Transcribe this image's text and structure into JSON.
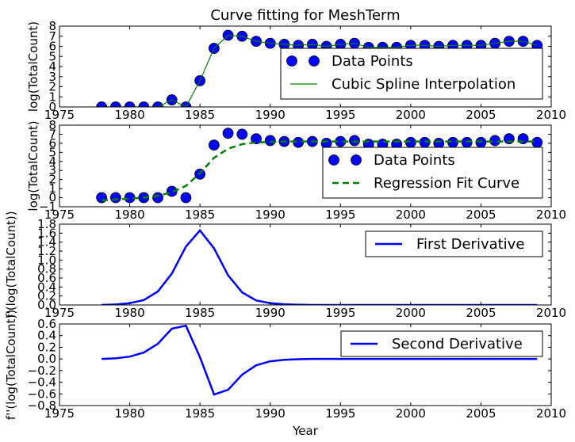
{
  "figure": {
    "title": "Curve fitting for MeshTerm",
    "xlabel": "Year"
  },
  "colors": {
    "markers": "#0000ff",
    "spline": "#008000",
    "regression": "#008000",
    "derivative": "#0000ff",
    "axes": "#000000",
    "background": "#ffffff"
  },
  "chart_data": [
    {
      "type": "scatter",
      "title": "Curve fitting for MeshTerm",
      "xlabel": "",
      "ylabel": "log(TotalCount)",
      "xlim": [
        1975,
        2010
      ],
      "ylim": [
        0,
        8
      ],
      "xticks": [
        1975,
        1980,
        1985,
        1990,
        1995,
        2000,
        2005,
        2010
      ],
      "yticks": [
        0,
        1,
        2,
        3,
        4,
        5,
        6,
        7,
        8
      ],
      "legend_position": "right",
      "grid": false,
      "series": [
        {
          "name": "Data Points",
          "style": "markers",
          "x": [
            1978,
            1979,
            1980,
            1981,
            1982,
            1983,
            1984,
            1985,
            1986,
            1987,
            1988,
            1989,
            1990,
            1991,
            1992,
            1993,
            1994,
            1995,
            1996,
            1997,
            1998,
            1999,
            2000,
            2001,
            2002,
            2003,
            2004,
            2005,
            2006,
            2007,
            2008,
            2009
          ],
          "y": [
            0,
            0,
            0,
            0,
            0,
            0.7,
            0,
            2.6,
            5.8,
            7.1,
            7.0,
            6.5,
            6.3,
            6.2,
            6.1,
            6.2,
            6.0,
            6.2,
            6.3,
            5.9,
            5.9,
            5.9,
            6.1,
            6.1,
            6.0,
            6.1,
            6.1,
            6.1,
            6.3,
            6.5,
            6.5,
            6.1
          ]
        },
        {
          "name": "Cubic Spline Interpolation",
          "style": "solid",
          "x": [
            1978,
            1979,
            1980,
            1981,
            1982,
            1983,
            1984,
            1985,
            1986,
            1987,
            1988,
            1989,
            1990,
            1991,
            1992,
            1993,
            1994,
            1995,
            1996,
            1997,
            1998,
            1999,
            2000,
            2001,
            2002,
            2003,
            2004,
            2005,
            2006,
            2007,
            2008,
            2009
          ],
          "y": [
            0,
            0,
            0,
            0,
            0,
            0.7,
            0,
            2.6,
            5.8,
            7.1,
            7.0,
            6.5,
            6.3,
            6.2,
            6.1,
            6.2,
            6.0,
            6.2,
            6.3,
            5.9,
            5.9,
            5.9,
            6.1,
            6.1,
            6.0,
            6.1,
            6.1,
            6.1,
            6.3,
            6.5,
            6.5,
            6.1
          ]
        }
      ]
    },
    {
      "type": "scatter",
      "title": "",
      "xlabel": "",
      "ylabel": "log(TotalCount)",
      "xlim": [
        1975,
        2010
      ],
      "ylim": [
        -1,
        8
      ],
      "xticks": [
        1975,
        1980,
        1985,
        1990,
        1995,
        2000,
        2005,
        2010
      ],
      "yticks": [
        -1,
        0,
        1,
        2,
        3,
        4,
        5,
        6,
        7,
        8
      ],
      "legend_position": "right",
      "grid": false,
      "series": [
        {
          "name": "Data Points",
          "style": "markers",
          "x": [
            1978,
            1979,
            1980,
            1981,
            1982,
            1983,
            1984,
            1985,
            1986,
            1987,
            1988,
            1989,
            1990,
            1991,
            1992,
            1993,
            1994,
            1995,
            1996,
            1997,
            1998,
            1999,
            2000,
            2001,
            2002,
            2003,
            2004,
            2005,
            2006,
            2007,
            2008,
            2009
          ],
          "y": [
            0,
            0,
            0,
            0,
            0,
            0.7,
            0,
            2.6,
            5.8,
            7.1,
            7.0,
            6.5,
            6.3,
            6.2,
            6.1,
            6.2,
            6.0,
            6.2,
            6.3,
            5.9,
            5.9,
            5.9,
            6.1,
            6.1,
            6.0,
            6.1,
            6.1,
            6.1,
            6.3,
            6.5,
            6.5,
            6.1
          ]
        },
        {
          "name": "Regression Fit Curve",
          "style": "dashed",
          "x": [
            1978,
            1979,
            1980,
            1981,
            1982,
            1983,
            1984,
            1985,
            1986,
            1987,
            1988,
            1989,
            1990,
            1991,
            1992,
            1993,
            1994,
            1995,
            1996,
            1997,
            1998,
            1999,
            2000,
            2001,
            2002,
            2003,
            2004,
            2005,
            2006,
            2007,
            2008,
            2009
          ],
          "y": [
            -0.3,
            -0.2,
            -0.1,
            0.0,
            0.2,
            0.6,
            1.3,
            2.7,
            4.4,
            5.4,
            5.9,
            6.1,
            6.15,
            6.2,
            6.2,
            6.2,
            6.2,
            6.2,
            6.2,
            6.2,
            6.2,
            6.2,
            6.2,
            6.2,
            6.2,
            6.2,
            6.2,
            6.2,
            6.2,
            6.2,
            6.2,
            6.2
          ]
        }
      ]
    },
    {
      "type": "line",
      "title": "",
      "xlabel": "",
      "ylabel": "f'(log(TotalCount))",
      "xlim": [
        1975,
        2010
      ],
      "ylim": [
        0,
        1.8
      ],
      "xticks": [
        1975,
        1980,
        1985,
        1990,
        1995,
        2000,
        2005,
        2010
      ],
      "yticks": [
        0.0,
        0.2,
        0.4,
        0.6,
        0.8,
        1.0,
        1.2,
        1.4,
        1.6,
        1.8
      ],
      "legend_position": "top-right",
      "grid": false,
      "series": [
        {
          "name": "First Derivative",
          "style": "solid",
          "x": [
            1978,
            1979,
            1980,
            1981,
            1982,
            1983,
            1984,
            1985,
            1986,
            1987,
            1988,
            1989,
            1990,
            1991,
            1992,
            1993,
            1994,
            1995,
            1996,
            1997,
            1998,
            1999,
            2000,
            2001,
            2002,
            2003,
            2004,
            2005,
            2006,
            2007,
            2008,
            2009
          ],
          "y": [
            0.0,
            0.01,
            0.04,
            0.11,
            0.3,
            0.7,
            1.3,
            1.66,
            1.26,
            0.66,
            0.28,
            0.1,
            0.04,
            0.015,
            0.005,
            0,
            0,
            0,
            0,
            0,
            0,
            0,
            0,
            0,
            0,
            0,
            0,
            0,
            0,
            0,
            0,
            0
          ]
        }
      ]
    },
    {
      "type": "line",
      "title": "",
      "xlabel": "Year",
      "ylabel": "f''(log(TotalCount))",
      "xlim": [
        1975,
        2010
      ],
      "ylim": [
        -0.8,
        0.6
      ],
      "xticks": [
        1975,
        1980,
        1985,
        1990,
        1995,
        2000,
        2005,
        2010
      ],
      "yticks": [
        -0.8,
        -0.6,
        -0.4,
        -0.2,
        0.0,
        0.2,
        0.4,
        0.6
      ],
      "legend_position": "top-right",
      "grid": false,
      "series": [
        {
          "name": "Second Derivative",
          "style": "solid",
          "x": [
            1978,
            1979,
            1980,
            1981,
            1982,
            1983,
            1984,
            1985,
            1986,
            1987,
            1988,
            1989,
            1990,
            1991,
            1992,
            1993,
            1994,
            1995,
            1996,
            1997,
            1998,
            1999,
            2000,
            2001,
            2002,
            2003,
            2004,
            2005,
            2006,
            2007,
            2008,
            2009
          ],
          "y": [
            0.0,
            0.01,
            0.04,
            0.11,
            0.26,
            0.52,
            0.57,
            0.03,
            -0.61,
            -0.53,
            -0.27,
            -0.11,
            -0.04,
            -0.015,
            -0.005,
            0,
            0,
            0,
            0,
            0,
            0,
            0,
            0,
            0,
            0,
            0,
            0,
            0,
            0,
            0,
            0,
            0
          ]
        }
      ]
    }
  ]
}
